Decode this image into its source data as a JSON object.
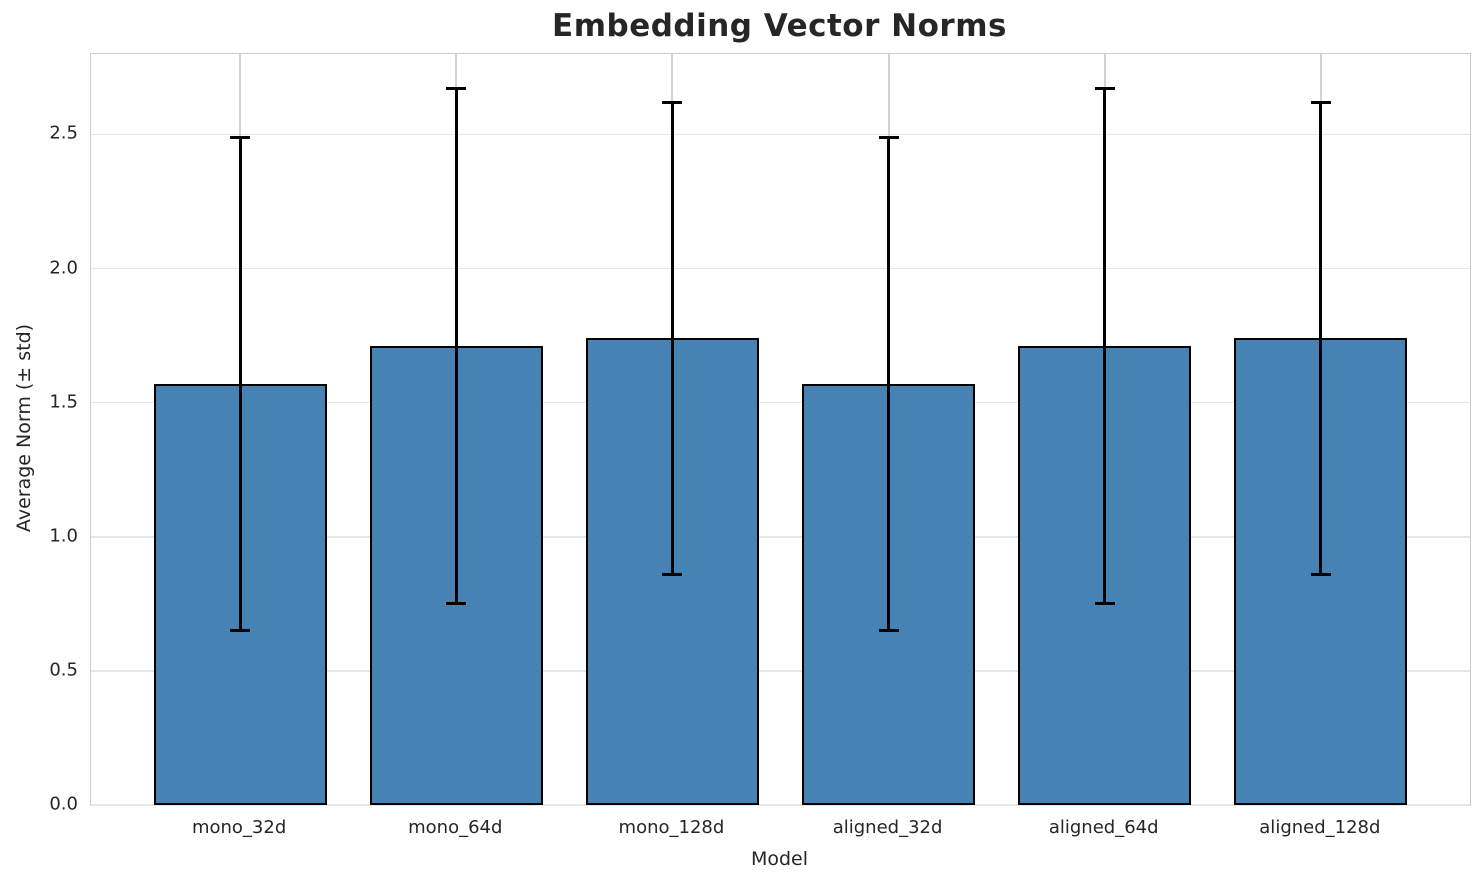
{
  "chart_data": {
    "type": "bar",
    "title": "Embedding Vector Norms",
    "xlabel": "Model",
    "ylabel": "Average Norm (± std)",
    "categories": [
      "mono_32d",
      "mono_64d",
      "mono_128d",
      "aligned_32d",
      "aligned_64d",
      "aligned_128d"
    ],
    "values": [
      1.57,
      1.71,
      1.74,
      1.57,
      1.71,
      1.74
    ],
    "errors": [
      0.92,
      0.96,
      0.88,
      0.92,
      0.96,
      0.88
    ],
    "ytick_labels": [
      "0.0",
      "0.5",
      "1.0",
      "1.5",
      "2.0",
      "2.5"
    ],
    "ytick_values": [
      0.0,
      0.5,
      1.0,
      1.5,
      2.0,
      2.5
    ],
    "ylim": [
      0,
      2.8
    ],
    "bar_width_fraction": 0.8,
    "grid": true,
    "legend": false,
    "colors": {
      "bar_fill": "#4682b4",
      "bar_edge": "#000000",
      "error_bar": "#000000",
      "grid_h": "#e7e7e7",
      "grid_v": "#d2d2d2",
      "spine": "#cccccc",
      "text": "#262626"
    }
  }
}
